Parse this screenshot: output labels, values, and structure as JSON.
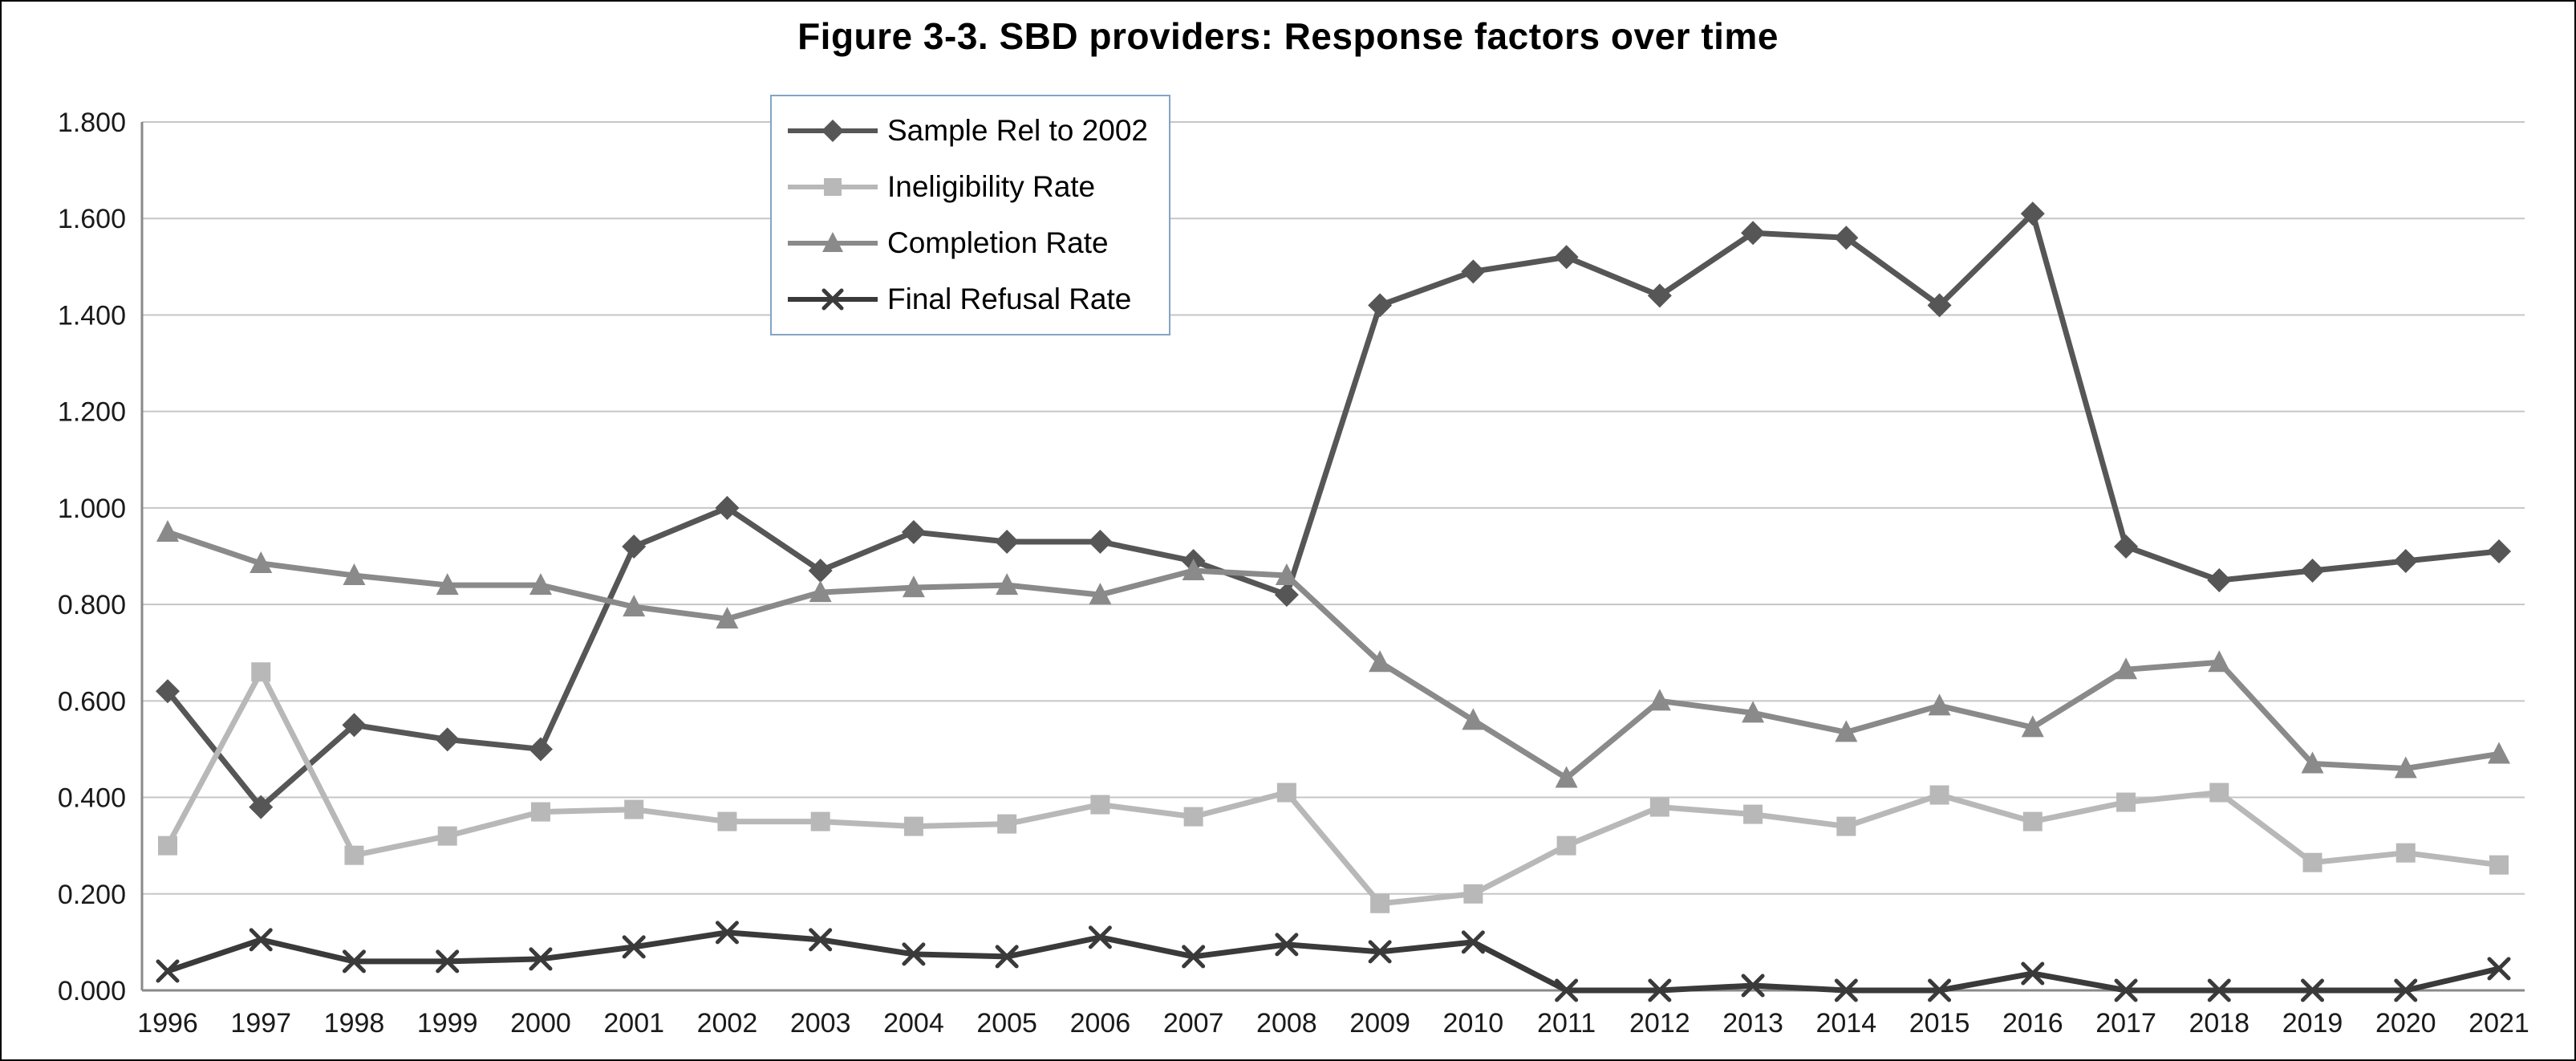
{
  "chart_data": {
    "type": "line",
    "title": "Figure 3-3. SBD providers: Response factors over time",
    "xlabel": "",
    "ylabel": "",
    "ylim": [
      0.0,
      1.8
    ],
    "grid": "horizontal",
    "legend_position": "top-center-inset",
    "x": [
      "1996",
      "1997",
      "1998",
      "1999",
      "2000",
      "2001",
      "2002",
      "2003",
      "2004",
      "2005",
      "2006",
      "2007",
      "2008",
      "2009",
      "2010",
      "2011",
      "2012",
      "2013",
      "2014",
      "2015",
      "2016",
      "2017",
      "2018",
      "2019",
      "2020",
      "2021"
    ],
    "yticks": [
      {
        "value": 0.0,
        "label": "0.000"
      },
      {
        "value": 0.2,
        "label": "0.200"
      },
      {
        "value": 0.4,
        "label": "0.400"
      },
      {
        "value": 0.6,
        "label": "0.600"
      },
      {
        "value": 0.8,
        "label": "0.800"
      },
      {
        "value": 1.0,
        "label": "1.000"
      },
      {
        "value": 1.2,
        "label": "1.200"
      },
      {
        "value": 1.4,
        "label": "1.400"
      },
      {
        "value": 1.6,
        "label": "1.600"
      },
      {
        "value": 1.8,
        "label": "1.800"
      }
    ],
    "series": [
      {
        "name": "Sample Rel to 2002",
        "marker": "diamond",
        "color": "#565656",
        "values": [
          0.62,
          0.38,
          0.55,
          0.52,
          0.5,
          0.92,
          1.0,
          0.87,
          0.95,
          0.93,
          0.93,
          0.89,
          0.82,
          1.42,
          1.49,
          1.52,
          1.44,
          1.57,
          1.56,
          1.42,
          1.61,
          0.92,
          0.85,
          0.87,
          0.89,
          0.91
        ]
      },
      {
        "name": "Ineligibility Rate",
        "marker": "square",
        "color": "#b8b8b8",
        "values": [
          0.3,
          0.66,
          0.28,
          0.32,
          0.37,
          0.375,
          0.35,
          0.35,
          0.34,
          0.345,
          0.385,
          0.36,
          0.41,
          0.18,
          0.2,
          0.3,
          0.38,
          0.365,
          0.34,
          0.405,
          0.35,
          0.39,
          0.41,
          0.265,
          0.285,
          0.26
        ]
      },
      {
        "name": "Completion Rate",
        "marker": "triangle",
        "color": "#8a8a8a",
        "values": [
          0.95,
          0.885,
          0.86,
          0.84,
          0.84,
          0.795,
          0.77,
          0.825,
          0.835,
          0.84,
          0.82,
          0.87,
          0.86,
          0.68,
          0.56,
          0.44,
          0.6,
          0.575,
          0.535,
          0.59,
          0.545,
          0.665,
          0.68,
          0.47,
          0.46,
          0.49
        ]
      },
      {
        "name": "Final Refusal Rate",
        "marker": "x",
        "color": "#3a3a3a",
        "values": [
          0.04,
          0.105,
          0.06,
          0.06,
          0.065,
          0.09,
          0.12,
          0.105,
          0.075,
          0.07,
          0.11,
          0.07,
          0.095,
          0.08,
          0.1,
          0.0,
          0.0,
          0.01,
          0.0,
          0.0,
          0.035,
          0.0,
          0.0,
          0.0,
          0.0,
          0.045
        ]
      }
    ]
  }
}
